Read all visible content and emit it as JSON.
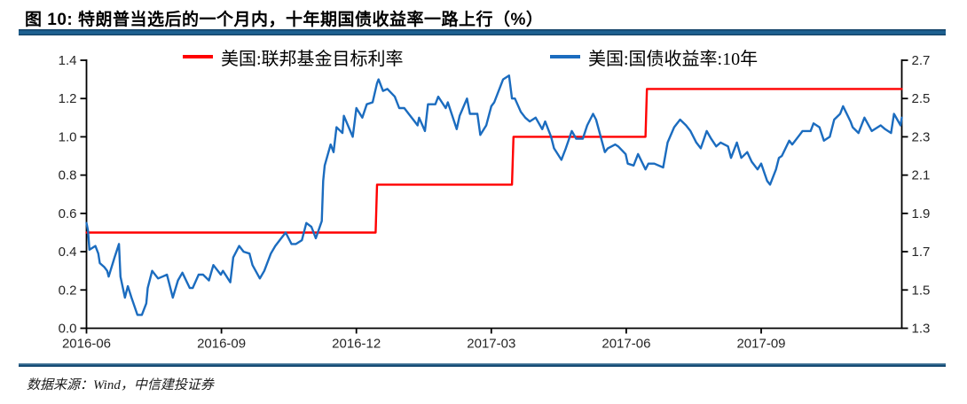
{
  "header": {
    "title": "图 10: 特朗普当选后的一个月内，十年期国债收益率一路上行（%）"
  },
  "footer": {
    "source": "数据来源：Wind，中信建投证券"
  },
  "colors": {
    "accent_bar": "#1E6191",
    "fed_funds_line": "#FF0000",
    "treasury_line": "#1B6CBF",
    "axis": "#000000"
  },
  "chart_data": {
    "type": "line",
    "title": "",
    "grid": false,
    "legend_position": "top",
    "x_ticks": [
      "2016-06",
      "2016-09",
      "2016-12",
      "2017-03",
      "2017-06",
      "2017-09"
    ],
    "x_range": [
      "2016-06-01",
      "2017-12-08"
    ],
    "left_axis": {
      "min": 0.0,
      "max": 1.4,
      "ticks": [
        "0.0",
        "0.2",
        "0.4",
        "0.6",
        "0.8",
        "1.0",
        "1.2",
        "1.4"
      ]
    },
    "right_axis": {
      "min": 1.3,
      "max": 2.7,
      "ticks": [
        "1.3",
        "1.5",
        "1.7",
        "1.9",
        "2.1",
        "2.3",
        "2.5",
        "2.7"
      ]
    },
    "series": [
      {
        "name": "美国:联邦基金目标利率",
        "color": "#FF0000",
        "axis": "left",
        "style": "step",
        "points": [
          [
            "2016-06-01",
            0.5
          ],
          [
            "2016-12-14",
            0.5
          ],
          [
            "2016-12-15",
            0.75
          ],
          [
            "2017-03-15",
            0.75
          ],
          [
            "2017-03-16",
            1.0
          ],
          [
            "2017-06-14",
            1.0
          ],
          [
            "2017-06-15",
            1.25
          ],
          [
            "2017-12-08",
            1.25
          ]
        ]
      },
      {
        "name": "美国:国债收益率:10年",
        "color": "#1B6CBF",
        "axis": "right",
        "style": "line",
        "points": [
          [
            "2016-06-01",
            1.85
          ],
          [
            "2016-06-02",
            1.81
          ],
          [
            "2016-06-03",
            1.71
          ],
          [
            "2016-06-07",
            1.73
          ],
          [
            "2016-06-09",
            1.69
          ],
          [
            "2016-06-10",
            1.64
          ],
          [
            "2016-06-13",
            1.62
          ],
          [
            "2016-06-15",
            1.6
          ],
          [
            "2016-06-16",
            1.57
          ],
          [
            "2016-06-20",
            1.67
          ],
          [
            "2016-06-23",
            1.74
          ],
          [
            "2016-06-24",
            1.57
          ],
          [
            "2016-06-27",
            1.46
          ],
          [
            "2016-06-29",
            1.52
          ],
          [
            "2016-07-01",
            1.46
          ],
          [
            "2016-07-05",
            1.37
          ],
          [
            "2016-07-08",
            1.37
          ],
          [
            "2016-07-11",
            1.43
          ],
          [
            "2016-07-12",
            1.51
          ],
          [
            "2016-07-15",
            1.6
          ],
          [
            "2016-07-19",
            1.56
          ],
          [
            "2016-07-22",
            1.57
          ],
          [
            "2016-07-25",
            1.58
          ],
          [
            "2016-07-29",
            1.46
          ],
          [
            "2016-08-02",
            1.55
          ],
          [
            "2016-08-05",
            1.59
          ],
          [
            "2016-08-10",
            1.51
          ],
          [
            "2016-08-12",
            1.51
          ],
          [
            "2016-08-16",
            1.58
          ],
          [
            "2016-08-19",
            1.58
          ],
          [
            "2016-08-23",
            1.55
          ],
          [
            "2016-08-26",
            1.63
          ],
          [
            "2016-08-31",
            1.58
          ],
          [
            "2016-09-02",
            1.6
          ],
          [
            "2016-09-07",
            1.54
          ],
          [
            "2016-09-09",
            1.67
          ],
          [
            "2016-09-13",
            1.73
          ],
          [
            "2016-09-16",
            1.7
          ],
          [
            "2016-09-20",
            1.69
          ],
          [
            "2016-09-22",
            1.63
          ],
          [
            "2016-09-27",
            1.56
          ],
          [
            "2016-09-30",
            1.6
          ],
          [
            "2016-10-04",
            1.69
          ],
          [
            "2016-10-07",
            1.73
          ],
          [
            "2016-10-11",
            1.77
          ],
          [
            "2016-10-14",
            1.8
          ],
          [
            "2016-10-18",
            1.74
          ],
          [
            "2016-10-21",
            1.74
          ],
          [
            "2016-10-25",
            1.76
          ],
          [
            "2016-10-28",
            1.85
          ],
          [
            "2016-11-01",
            1.83
          ],
          [
            "2016-11-04",
            1.77
          ],
          [
            "2016-11-08",
            1.86
          ],
          [
            "2016-11-09",
            2.07
          ],
          [
            "2016-11-10",
            2.15
          ],
          [
            "2016-11-14",
            2.26
          ],
          [
            "2016-11-16",
            2.22
          ],
          [
            "2016-11-18",
            2.35
          ],
          [
            "2016-11-22",
            2.32
          ],
          [
            "2016-11-23",
            2.41
          ],
          [
            "2016-11-29",
            2.3
          ],
          [
            "2016-12-01",
            2.45
          ],
          [
            "2016-12-05",
            2.4
          ],
          [
            "2016-12-08",
            2.47
          ],
          [
            "2016-12-12",
            2.48
          ],
          [
            "2016-12-15",
            2.58
          ],
          [
            "2016-12-16",
            2.6
          ],
          [
            "2016-12-19",
            2.54
          ],
          [
            "2016-12-22",
            2.55
          ],
          [
            "2016-12-27",
            2.51
          ],
          [
            "2016-12-30",
            2.45
          ],
          [
            "2017-01-03",
            2.45
          ],
          [
            "2017-01-06",
            2.42
          ],
          [
            "2017-01-10",
            2.38
          ],
          [
            "2017-01-12",
            2.36
          ],
          [
            "2017-01-13",
            2.4
          ],
          [
            "2017-01-17",
            2.33
          ],
          [
            "2017-01-19",
            2.47
          ],
          [
            "2017-01-24",
            2.47
          ],
          [
            "2017-01-26",
            2.51
          ],
          [
            "2017-01-31",
            2.45
          ],
          [
            "2017-02-02",
            2.48
          ],
          [
            "2017-02-08",
            2.34
          ],
          [
            "2017-02-10",
            2.41
          ],
          [
            "2017-02-15",
            2.5
          ],
          [
            "2017-02-17",
            2.42
          ],
          [
            "2017-02-22",
            2.42
          ],
          [
            "2017-02-24",
            2.31
          ],
          [
            "2017-02-28",
            2.36
          ],
          [
            "2017-03-01",
            2.46
          ],
          [
            "2017-03-03",
            2.48
          ],
          [
            "2017-03-09",
            2.6
          ],
          [
            "2017-03-13",
            2.62
          ],
          [
            "2017-03-15",
            2.5
          ],
          [
            "2017-03-17",
            2.5
          ],
          [
            "2017-03-21",
            2.43
          ],
          [
            "2017-03-24",
            2.4
          ],
          [
            "2017-03-27",
            2.38
          ],
          [
            "2017-03-31",
            2.4
          ],
          [
            "2017-04-05",
            2.34
          ],
          [
            "2017-04-07",
            2.38
          ],
          [
            "2017-04-11",
            2.3
          ],
          [
            "2017-04-13",
            2.24
          ],
          [
            "2017-04-18",
            2.18
          ],
          [
            "2017-04-21",
            2.24
          ],
          [
            "2017-04-25",
            2.33
          ],
          [
            "2017-04-28",
            2.29
          ],
          [
            "2017-05-02",
            2.29
          ],
          [
            "2017-05-05",
            2.36
          ],
          [
            "2017-05-09",
            2.42
          ],
          [
            "2017-05-11",
            2.39
          ],
          [
            "2017-05-17",
            2.22
          ],
          [
            "2017-05-19",
            2.24
          ],
          [
            "2017-05-24",
            2.26
          ],
          [
            "2017-05-26",
            2.25
          ],
          [
            "2017-05-31",
            2.21
          ],
          [
            "2017-06-02",
            2.16
          ],
          [
            "2017-06-06",
            2.15
          ],
          [
            "2017-06-09",
            2.21
          ],
          [
            "2017-06-14",
            2.13
          ],
          [
            "2017-06-16",
            2.16
          ],
          [
            "2017-06-20",
            2.16
          ],
          [
            "2017-06-26",
            2.14
          ],
          [
            "2017-06-29",
            2.27
          ],
          [
            "2017-07-03",
            2.35
          ],
          [
            "2017-07-07",
            2.39
          ],
          [
            "2017-07-11",
            2.36
          ],
          [
            "2017-07-14",
            2.33
          ],
          [
            "2017-07-18",
            2.27
          ],
          [
            "2017-07-21",
            2.24
          ],
          [
            "2017-07-25",
            2.33
          ],
          [
            "2017-07-28",
            2.29
          ],
          [
            "2017-08-01",
            2.25
          ],
          [
            "2017-08-04",
            2.27
          ],
          [
            "2017-08-09",
            2.25
          ],
          [
            "2017-08-11",
            2.19
          ],
          [
            "2017-08-15",
            2.27
          ],
          [
            "2017-08-18",
            2.19
          ],
          [
            "2017-08-22",
            2.22
          ],
          [
            "2017-08-25",
            2.17
          ],
          [
            "2017-08-29",
            2.13
          ],
          [
            "2017-09-01",
            2.16
          ],
          [
            "2017-09-05",
            2.07
          ],
          [
            "2017-09-07",
            2.05
          ],
          [
            "2017-09-11",
            2.13
          ],
          [
            "2017-09-13",
            2.19
          ],
          [
            "2017-09-15",
            2.2
          ],
          [
            "2017-09-20",
            2.28
          ],
          [
            "2017-09-22",
            2.26
          ],
          [
            "2017-09-27",
            2.31
          ],
          [
            "2017-09-29",
            2.33
          ],
          [
            "2017-10-04",
            2.33
          ],
          [
            "2017-10-06",
            2.37
          ],
          [
            "2017-10-10",
            2.35
          ],
          [
            "2017-10-13",
            2.28
          ],
          [
            "2017-10-17",
            2.3
          ],
          [
            "2017-10-20",
            2.39
          ],
          [
            "2017-10-24",
            2.42
          ],
          [
            "2017-10-26",
            2.46
          ],
          [
            "2017-10-31",
            2.38
          ],
          [
            "2017-11-02",
            2.35
          ],
          [
            "2017-11-06",
            2.32
          ],
          [
            "2017-11-10",
            2.4
          ],
          [
            "2017-11-15",
            2.33
          ],
          [
            "2017-11-17",
            2.34
          ],
          [
            "2017-11-21",
            2.36
          ],
          [
            "2017-11-24",
            2.34
          ],
          [
            "2017-11-28",
            2.32
          ],
          [
            "2017-11-30",
            2.42
          ],
          [
            "2017-12-04",
            2.36
          ],
          [
            "2017-12-08",
            2.4
          ]
        ]
      }
    ]
  }
}
